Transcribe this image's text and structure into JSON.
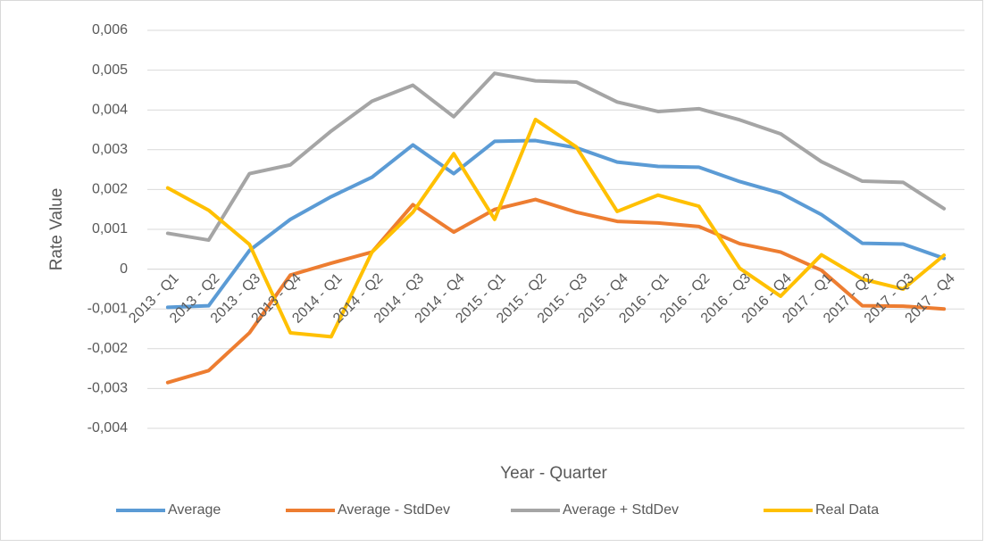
{
  "chart_data": {
    "type": "line",
    "x_label": "Year - Quarter",
    "y_label": "Rate Value",
    "categories": [
      "2013 - Q1",
      "2013 - Q2",
      "2013 - Q3",
      "2013 - Q4",
      "2014 - Q1",
      "2014 - Q2",
      "2014 - Q3",
      "2014 - Q4",
      "2015 - Q1",
      "2015 - Q2",
      "2015 - Q3",
      "2015 - Q4",
      "2016 - Q1",
      "2016 - Q2",
      "2016 - Q3",
      "2016 - Q4",
      "2017 - Q1",
      "2017 - Q2",
      "2017 - Q3",
      "2017 - Q4"
    ],
    "series": [
      {
        "name": "Average",
        "color": "#5b9bd5",
        "values": [
          -0.00096,
          -0.00092,
          0.00047,
          0.00125,
          0.00182,
          0.00231,
          0.00312,
          0.0024,
          0.00321,
          0.00323,
          0.00305,
          0.00269,
          0.00258,
          0.00256,
          0.0022,
          0.00191,
          0.00137,
          0.00065,
          0.00063,
          0.00027
        ]
      },
      {
        "name": "Average - StdDev",
        "color": "#ed7d31",
        "values": [
          -0.00285,
          -0.00255,
          -0.0016,
          -0.00015,
          0.00015,
          0.00043,
          0.00162,
          0.00093,
          0.0015,
          0.00175,
          0.00143,
          0.0012,
          0.00116,
          0.00107,
          0.00064,
          0.00043,
          -3e-05,
          -0.00092,
          -0.00093,
          -0.001
        ]
      },
      {
        "name": "Average + StdDev",
        "color": "#a5a5a5",
        "values": [
          0.0009,
          0.00073,
          0.0024,
          0.00262,
          0.00347,
          0.00422,
          0.00462,
          0.00383,
          0.00492,
          0.00473,
          0.0047,
          0.0042,
          0.00396,
          0.00403,
          0.00375,
          0.0034,
          0.0027,
          0.00221,
          0.00218,
          0.00152
        ]
      },
      {
        "name": "Real Data",
        "color": "#ffc000",
        "values": [
          0.00204,
          0.00148,
          0.00062,
          -0.0016,
          -0.0017,
          0.00043,
          0.00143,
          0.0029,
          0.00125,
          0.00376,
          0.00307,
          0.00145,
          0.00186,
          0.00158,
          2e-05,
          -0.00068,
          0.00036,
          -0.00025,
          -0.0005,
          0.00035
        ]
      }
    ],
    "ylim": [
      -0.004,
      0.006
    ],
    "yticks": [
      {
        "value": -0.004,
        "label": "-0,004"
      },
      {
        "value": -0.003,
        "label": "-0,003"
      },
      {
        "value": -0.002,
        "label": "-0,002"
      },
      {
        "value": -0.001,
        "label": "-0,001"
      },
      0,
      {
        "value": 0.001,
        "label": "0,001"
      },
      {
        "value": 0.002,
        "label": "0,002"
      },
      {
        "value": 0.003,
        "label": "0,003"
      },
      {
        "value": 0.004,
        "label": "0,004"
      },
      {
        "value": 0.005,
        "label": "0,005"
      },
      {
        "value": 0.006,
        "label": "0,006"
      }
    ],
    "grid": true,
    "legend": "bottom"
  }
}
